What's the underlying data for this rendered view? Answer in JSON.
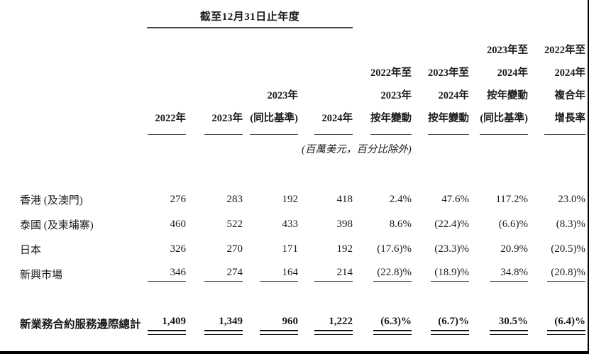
{
  "page": {
    "group_header": "截至12月31日止年度",
    "unit_note": "(百萬美元，百分比除外)"
  },
  "columns": [
    {
      "lines": [
        "2022年"
      ]
    },
    {
      "lines": [
        "2023年"
      ]
    },
    {
      "lines": [
        "2023年",
        "(同比基準)"
      ]
    },
    {
      "lines": [
        "2024年"
      ]
    },
    {
      "lines": [
        "2022年至",
        "2023年",
        "按年變動"
      ]
    },
    {
      "lines": [
        "2023年至",
        "2024年",
        "按年變動"
      ]
    },
    {
      "lines": [
        "2023年至",
        "2024年",
        "按年變動",
        "(同比基準)"
      ]
    },
    {
      "lines": [
        "2022年至",
        "2024年",
        "複合年",
        "增長率"
      ]
    }
  ],
  "rows": [
    {
      "label": "香港 (及澳門)",
      "values": [
        "276",
        "283",
        "192",
        "418",
        "2.4%",
        "47.6%",
        "117.2%",
        "23.0%"
      ]
    },
    {
      "label": "泰國 (及柬埔寨)",
      "values": [
        "460",
        "522",
        "433",
        "398",
        "8.6%",
        "(22.4)%",
        "(6.6)%",
        "(8.3)%"
      ]
    },
    {
      "label": "日本",
      "values": [
        "326",
        "270",
        "171",
        "192",
        "(17.6)%",
        "(23.3)%",
        "20.9%",
        "(20.5)%"
      ]
    },
    {
      "label": "新興市場",
      "values": [
        "346",
        "274",
        "164",
        "214",
        "(22.8)%",
        "(18.9)%",
        "34.8%",
        "(20.8)%"
      ]
    }
  ],
  "total_row": {
    "label": "新業務合約服務邊際總計",
    "values": [
      "1,409",
      "1,349",
      "960",
      "1,222",
      "(6.3)%",
      "(6.7)%",
      "30.5%",
      "(6.4)%"
    ]
  }
}
